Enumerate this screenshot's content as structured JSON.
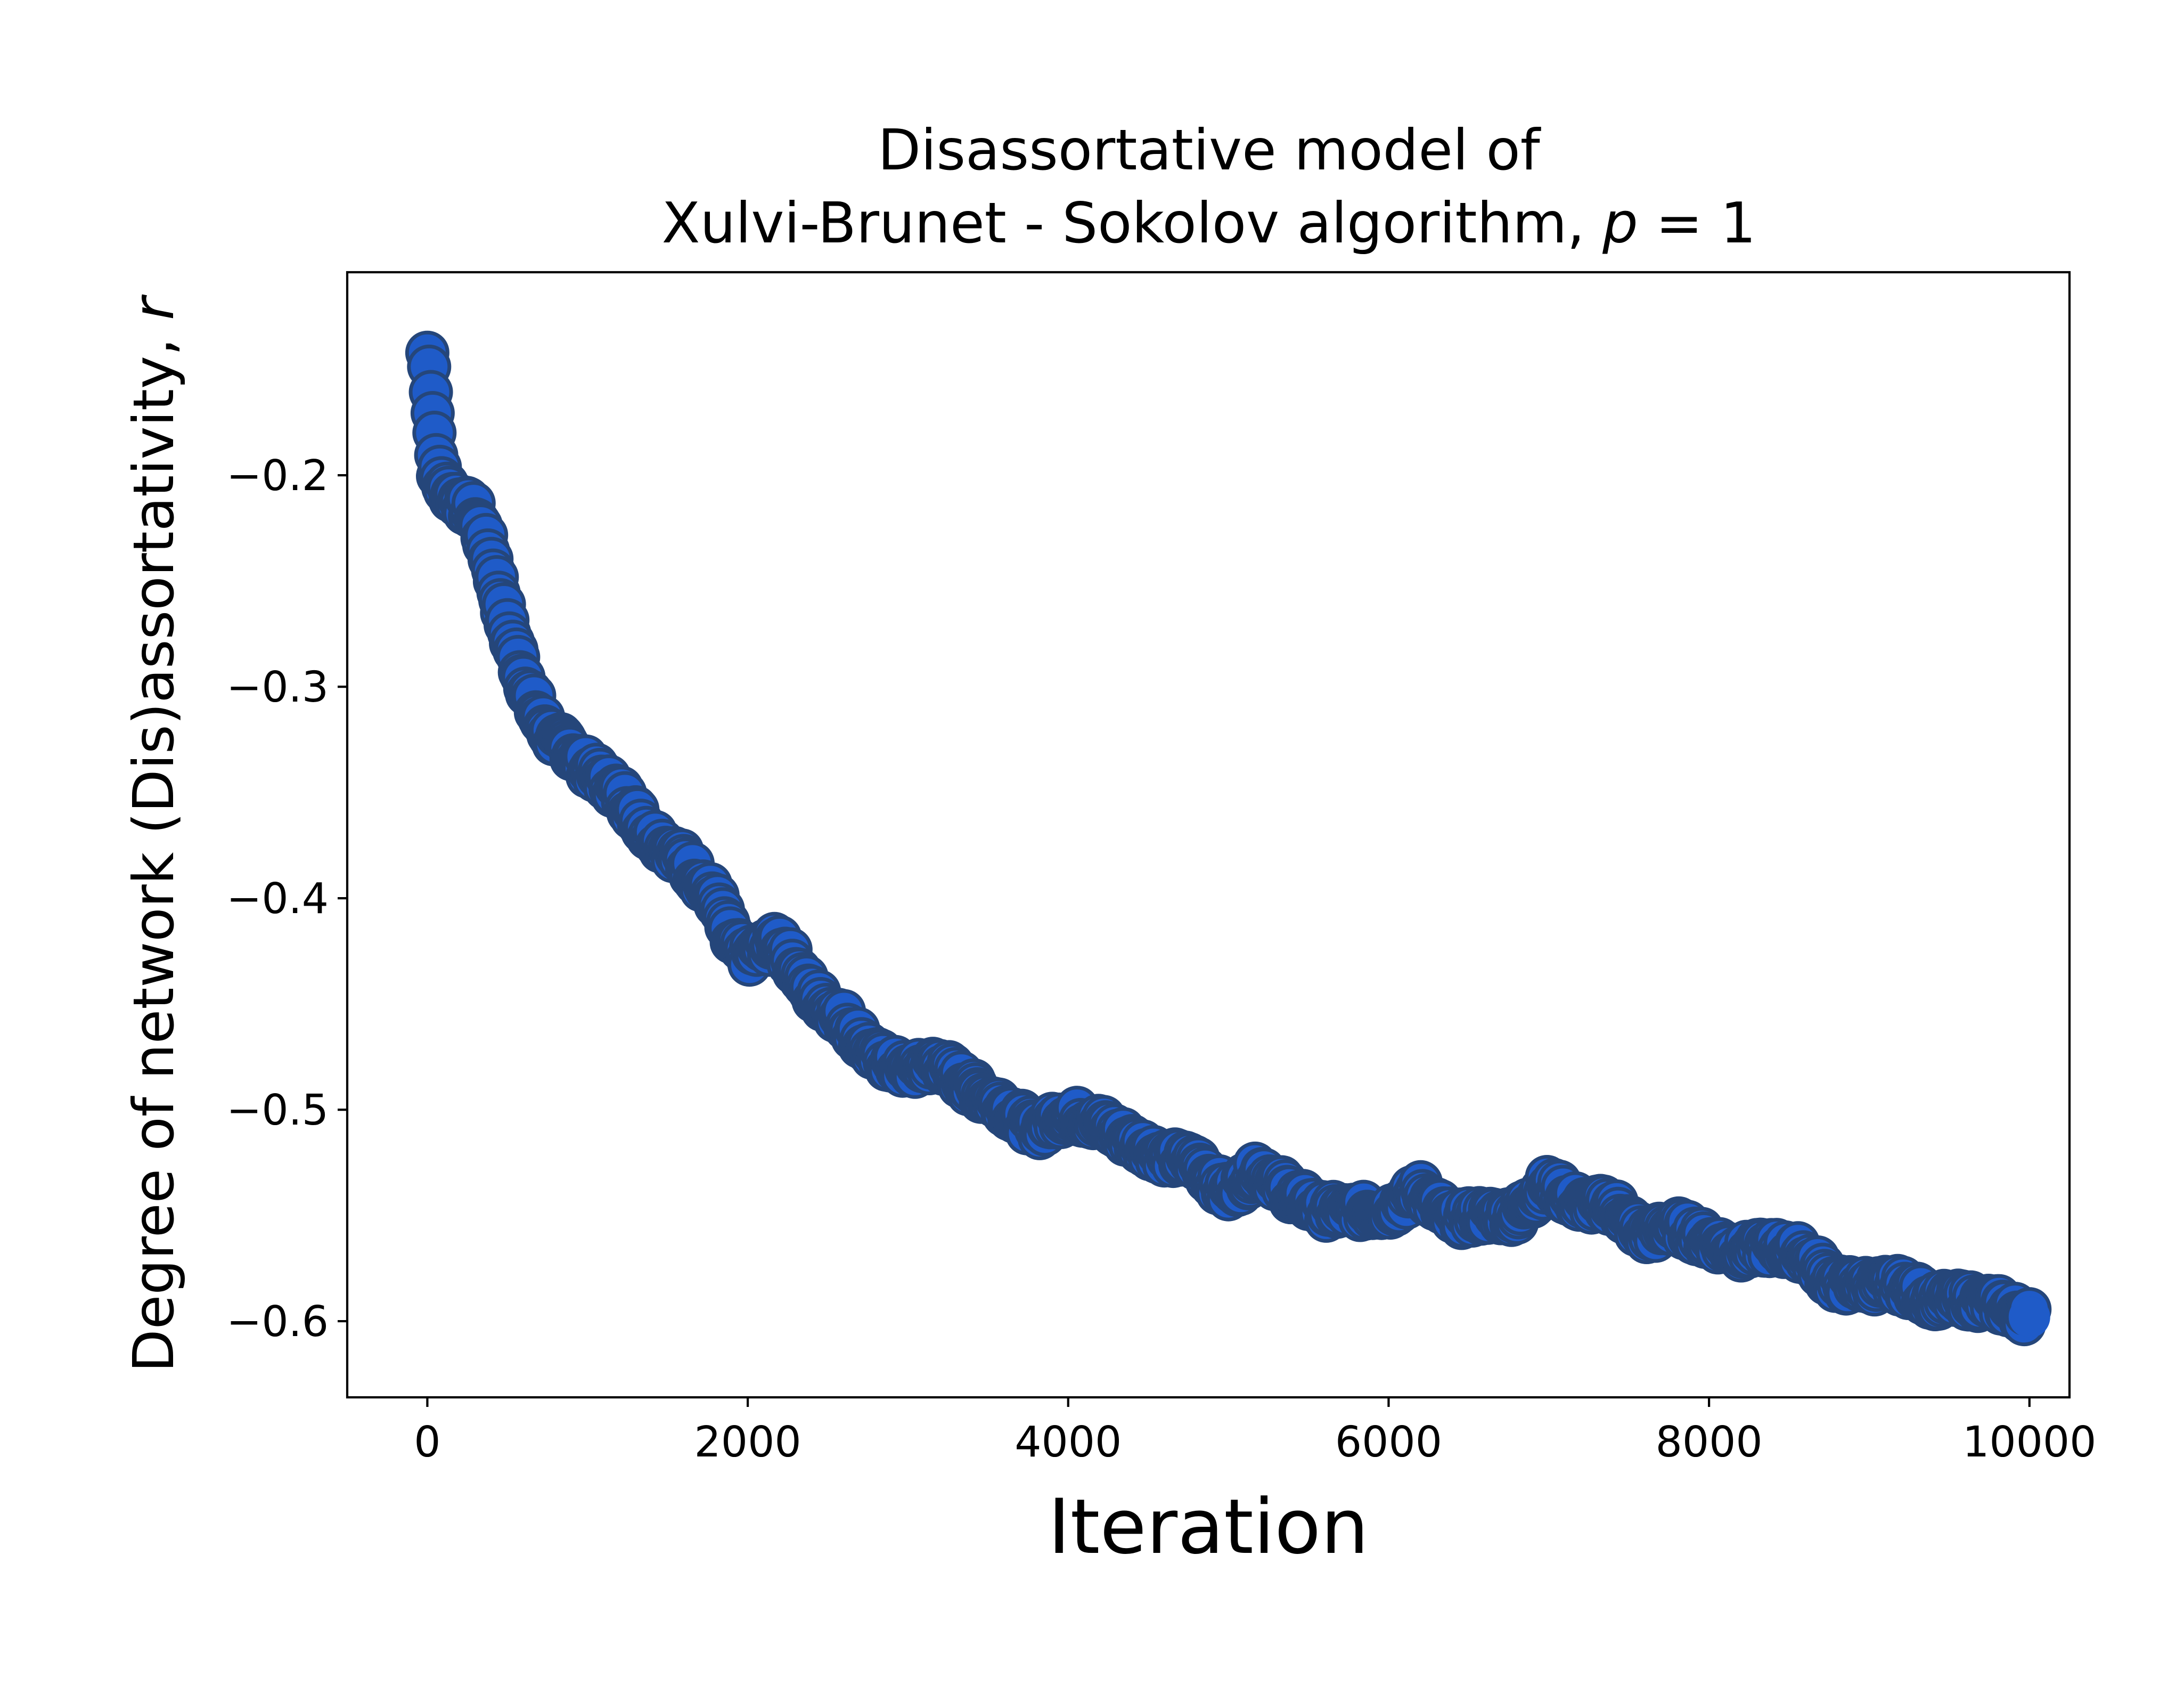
{
  "chart_data": {
    "type": "scatter",
    "title_line1": "Disassortative model of",
    "title_line2_prefix": "Xulvi-Brunet - Sokolov algorithm, ",
    "title_line2_math_var": "p",
    "title_line2_math_rest": " = 1",
    "xlabel": "Iteration",
    "ylabel_prefix": "Degree of network (Dis)assortativity, ",
    "ylabel_math_var": "r",
    "xlim": [
      -500,
      10250
    ],
    "ylim": [
      -0.636,
      -0.104
    ],
    "xticks": [
      0,
      2000,
      4000,
      6000,
      8000,
      10000
    ],
    "xtick_labels": [
      "0",
      "2000",
      "4000",
      "6000",
      "8000",
      "10000"
    ],
    "yticks": [
      -0.2,
      -0.3,
      -0.4,
      -0.5,
      -0.6
    ],
    "ytick_labels": [
      "−0.2",
      "−0.3",
      "−0.4",
      "−0.5",
      "−0.6"
    ],
    "grid": false,
    "marker_face_color": "#1f5bc8",
    "marker_edge_color": "#25467a",
    "anchors": [
      [
        0,
        -0.142
      ],
      [
        20,
        -0.155
      ],
      [
        40,
        -0.175
      ],
      [
        60,
        -0.195
      ],
      [
        100,
        -0.205
      ],
      [
        200,
        -0.212
      ],
      [
        300,
        -0.218
      ],
      [
        400,
        -0.24
      ],
      [
        500,
        -0.272
      ],
      [
        600,
        -0.295
      ],
      [
        700,
        -0.315
      ],
      [
        800,
        -0.325
      ],
      [
        900,
        -0.33
      ],
      [
        1000,
        -0.338
      ],
      [
        1200,
        -0.35
      ],
      [
        1400,
        -0.37
      ],
      [
        1600,
        -0.382
      ],
      [
        1800,
        -0.4
      ],
      [
        1900,
        -0.42
      ],
      [
        2000,
        -0.428
      ],
      [
        2200,
        -0.42
      ],
      [
        2400,
        -0.445
      ],
      [
        2600,
        -0.457
      ],
      [
        2800,
        -0.475
      ],
      [
        3000,
        -0.482
      ],
      [
        3200,
        -0.478
      ],
      [
        3400,
        -0.49
      ],
      [
        3600,
        -0.498
      ],
      [
        3800,
        -0.51
      ],
      [
        4000,
        -0.502
      ],
      [
        4200,
        -0.506
      ],
      [
        4400,
        -0.515
      ],
      [
        4600,
        -0.522
      ],
      [
        4800,
        -0.525
      ],
      [
        5000,
        -0.54
      ],
      [
        5200,
        -0.528
      ],
      [
        5400,
        -0.54
      ],
      [
        5600,
        -0.548
      ],
      [
        5800,
        -0.548
      ],
      [
        6000,
        -0.548
      ],
      [
        6200,
        -0.538
      ],
      [
        6400,
        -0.552
      ],
      [
        6600,
        -0.55
      ],
      [
        6800,
        -0.55
      ],
      [
        7000,
        -0.535
      ],
      [
        7200,
        -0.545
      ],
      [
        7400,
        -0.545
      ],
      [
        7600,
        -0.56
      ],
      [
        7800,
        -0.555
      ],
      [
        8000,
        -0.562
      ],
      [
        8200,
        -0.567
      ],
      [
        8400,
        -0.565
      ],
      [
        8600,
        -0.568
      ],
      [
        8800,
        -0.583
      ],
      [
        9000,
        -0.583
      ],
      [
        9200,
        -0.583
      ],
      [
        9400,
        -0.59
      ],
      [
        9600,
        -0.59
      ],
      [
        9800,
        -0.592
      ],
      [
        10000,
        -0.598
      ]
    ]
  }
}
